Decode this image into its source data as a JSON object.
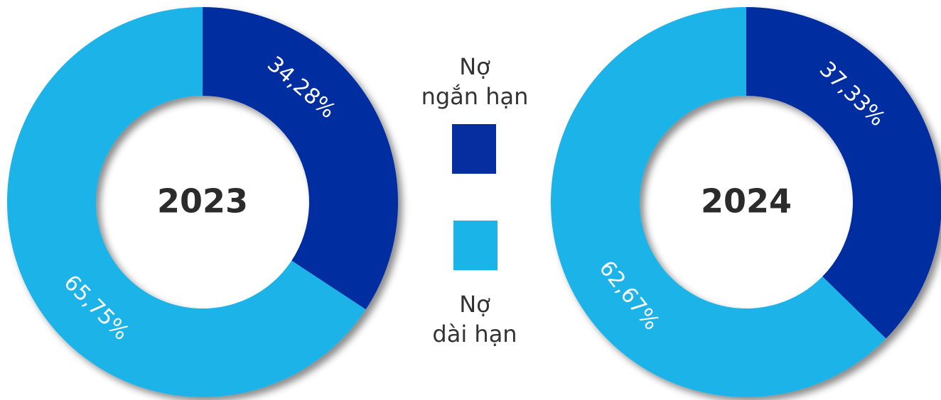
{
  "chart_data": [
    {
      "type": "donut",
      "title": "2023",
      "categories": [
        "Nợ ngắn hạn",
        "Nợ dài hạn"
      ],
      "values": [
        34.28,
        65.75
      ],
      "value_labels": [
        "34,28%",
        "65,75%"
      ],
      "colors": [
        "#062ea0",
        "#1ab4e8"
      ]
    },
    {
      "type": "donut",
      "title": "2024",
      "categories": [
        "Nợ ngắn hạn",
        "Nợ dài hạn"
      ],
      "values": [
        37.33,
        62.67
      ],
      "value_labels": [
        "37,33%",
        "62,67%"
      ],
      "colors": [
        "#062ea0",
        "#1ab4e8"
      ]
    }
  ]
}
